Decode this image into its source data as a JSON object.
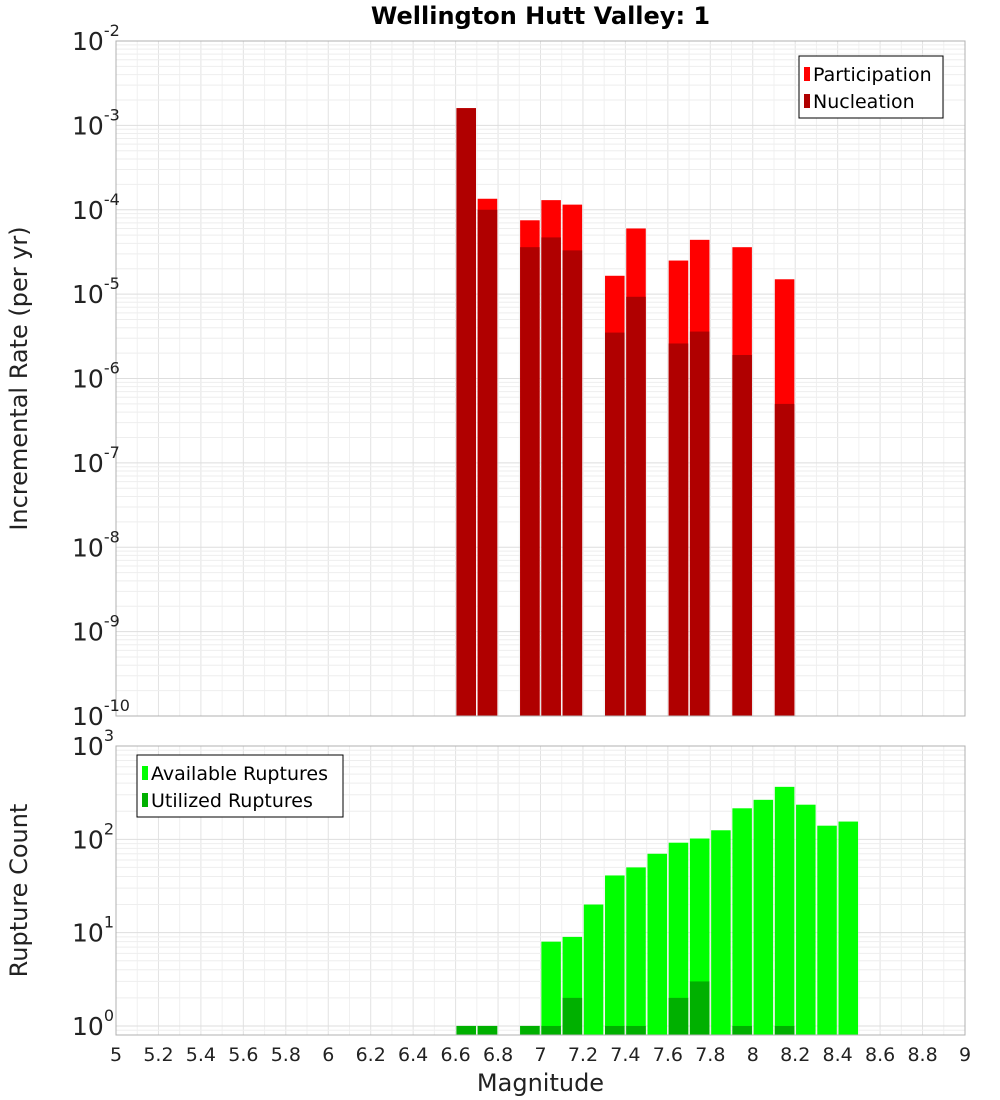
{
  "chart_data": [
    {
      "type": "bar",
      "title": "Wellington Hutt Valley: 1",
      "ylabel": "Incremental Rate (per yr)",
      "yscale": "log",
      "ylim": [
        1e-10,
        0.01
      ],
      "xlim": [
        5,
        9
      ],
      "legend_position": "top-right",
      "series": [
        {
          "name": "Participation",
          "color": "#ff0000",
          "points": [
            {
              "x": 6.65,
              "y": 0.0016
            },
            {
              "x": 6.75,
              "y": 0.000135
            },
            {
              "x": 6.95,
              "y": 7.5e-05
            },
            {
              "x": 7.05,
              "y": 0.00013
            },
            {
              "x": 7.15,
              "y": 0.000115
            },
            {
              "x": 7.35,
              "y": 1.65e-05
            },
            {
              "x": 7.45,
              "y": 6e-05
            },
            {
              "x": 7.65,
              "y": 2.5e-05
            },
            {
              "x": 7.75,
              "y": 4.4e-05
            },
            {
              "x": 7.95,
              "y": 3.6e-05
            },
            {
              "x": 8.15,
              "y": 1.5e-05
            }
          ]
        },
        {
          "name": "Nucleation",
          "color": "#b00000",
          "points": [
            {
              "x": 6.65,
              "y": 0.0016
            },
            {
              "x": 6.75,
              "y": 0.0001
            },
            {
              "x": 6.95,
              "y": 3.6e-05
            },
            {
              "x": 7.05,
              "y": 4.7e-05
            },
            {
              "x": 7.15,
              "y": 3.3e-05
            },
            {
              "x": 7.35,
              "y": 3.5e-06
            },
            {
              "x": 7.45,
              "y": 9.3e-06
            },
            {
              "x": 7.65,
              "y": 2.6e-06
            },
            {
              "x": 7.75,
              "y": 3.6e-06
            },
            {
              "x": 7.95,
              "y": 1.9e-06
            },
            {
              "x": 8.15,
              "y": 5e-07
            }
          ]
        }
      ]
    },
    {
      "type": "bar",
      "xlabel": "Magnitude",
      "ylabel": "Rupture Count",
      "yscale": "log",
      "ylim": [
        0.8,
        1000
      ],
      "xlim": [
        5,
        9
      ],
      "xticks": [
        "5",
        "5.2",
        "5.4",
        "5.6",
        "5.8",
        "6",
        "6.2",
        "6.4",
        "6.6",
        "6.8",
        "7",
        "7.2",
        "7.4",
        "7.6",
        "7.8",
        "8",
        "8.2",
        "8.4",
        "8.6",
        "8.8",
        "9"
      ],
      "legend_position": "top-left",
      "series": [
        {
          "name": "Available Ruptures",
          "color": "#00ff00",
          "points": [
            {
              "x": 6.65,
              "y": 1
            },
            {
              "x": 6.75,
              "y": 1
            },
            {
              "x": 6.95,
              "y": 1
            },
            {
              "x": 7.05,
              "y": 8
            },
            {
              "x": 7.15,
              "y": 9
            },
            {
              "x": 7.25,
              "y": 20
            },
            {
              "x": 7.35,
              "y": 41
            },
            {
              "x": 7.45,
              "y": 50
            },
            {
              "x": 7.55,
              "y": 70
            },
            {
              "x": 7.65,
              "y": 92
            },
            {
              "x": 7.75,
              "y": 102
            },
            {
              "x": 7.85,
              "y": 125
            },
            {
              "x": 7.95,
              "y": 215
            },
            {
              "x": 8.05,
              "y": 265
            },
            {
              "x": 8.15,
              "y": 365
            },
            {
              "x": 8.25,
              "y": 235
            },
            {
              "x": 8.35,
              "y": 140
            },
            {
              "x": 8.45,
              "y": 155
            }
          ]
        },
        {
          "name": "Utilized Ruptures",
          "color": "#00b000",
          "points": [
            {
              "x": 6.65,
              "y": 1
            },
            {
              "x": 6.75,
              "y": 1
            },
            {
              "x": 6.95,
              "y": 1
            },
            {
              "x": 7.05,
              "y": 1
            },
            {
              "x": 7.15,
              "y": 2
            },
            {
              "x": 7.35,
              "y": 1
            },
            {
              "x": 7.45,
              "y": 1
            },
            {
              "x": 7.65,
              "y": 2
            },
            {
              "x": 7.75,
              "y": 3
            },
            {
              "x": 7.95,
              "y": 1
            },
            {
              "x": 8.15,
              "y": 1
            }
          ]
        }
      ]
    }
  ]
}
